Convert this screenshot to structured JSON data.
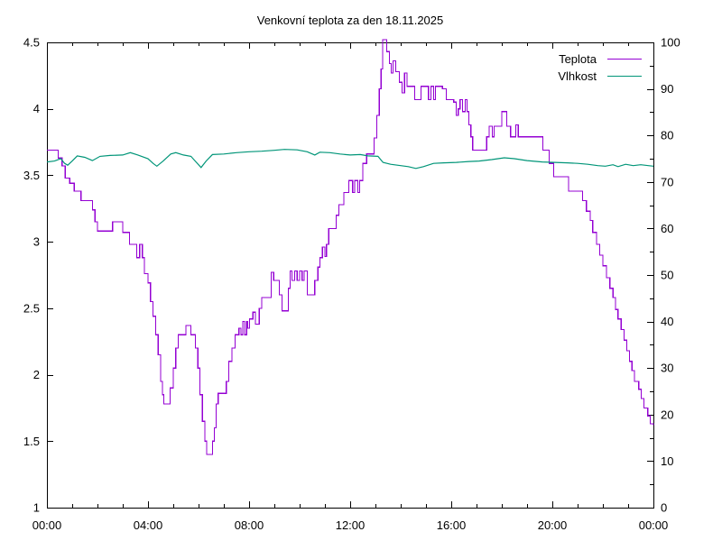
{
  "chart_data": {
    "type": "line",
    "title": "Venkovní teplota za den 18.11.2025",
    "grid": false,
    "legend": {
      "position": "top-right-inside"
    },
    "x_axis": {
      "unit": "time",
      "range_hours": [
        0,
        24
      ],
      "minor_tick_every_hours": 1,
      "major_ticks": [
        [
          0,
          "00:00"
        ],
        [
          4,
          "04:00"
        ],
        [
          8,
          "08:00"
        ],
        [
          12,
          "12:00"
        ],
        [
          16,
          "16:00"
        ],
        [
          20,
          "20:00"
        ],
        [
          24,
          "00:00"
        ]
      ]
    },
    "y_axis_left": {
      "name": "Teplota",
      "range": [
        1,
        4.5
      ],
      "ticks": [
        [
          1,
          "1"
        ],
        [
          1.5,
          "1.5"
        ],
        [
          2,
          "2"
        ],
        [
          2.5,
          "2.5"
        ],
        [
          3,
          "3"
        ],
        [
          3.5,
          "3.5"
        ],
        [
          4,
          "4"
        ],
        [
          4.5,
          "4.5"
        ]
      ]
    },
    "y_axis_right": {
      "name": "Vlhkost",
      "range": [
        0,
        100
      ],
      "minor_tick_every": 5,
      "ticks": [
        [
          0,
          "0"
        ],
        [
          10,
          "10"
        ],
        [
          20,
          "20"
        ],
        [
          30,
          "30"
        ],
        [
          40,
          "40"
        ],
        [
          50,
          "50"
        ],
        [
          60,
          "60"
        ],
        [
          70,
          "70"
        ],
        [
          80,
          "80"
        ],
        [
          90,
          "90"
        ],
        [
          100,
          "100"
        ]
      ]
    },
    "series": [
      {
        "name": "Teplota",
        "axis": "left",
        "color": "#9400d3",
        "style": "steps",
        "points": [
          [
            0,
            3.69
          ],
          [
            0.45,
            3.63
          ],
          [
            0.6,
            3.57
          ],
          [
            0.72,
            3.48
          ],
          [
            0.9,
            3.44
          ],
          [
            1.08,
            3.38
          ],
          [
            1.35,
            3.31
          ],
          [
            1.8,
            3.24
          ],
          [
            1.9,
            3.15
          ],
          [
            2.0,
            3.08
          ],
          [
            2.6,
            3.15
          ],
          [
            3.0,
            3.07
          ],
          [
            3.27,
            2.98
          ],
          [
            3.55,
            2.88
          ],
          [
            3.67,
            2.98
          ],
          [
            3.78,
            2.88
          ],
          [
            3.86,
            2.76
          ],
          [
            4.0,
            2.69
          ],
          [
            4.1,
            2.55
          ],
          [
            4.2,
            2.44
          ],
          [
            4.3,
            2.3
          ],
          [
            4.4,
            2.15
          ],
          [
            4.5,
            1.95
          ],
          [
            4.57,
            1.85
          ],
          [
            4.62,
            1.78
          ],
          [
            4.88,
            1.9
          ],
          [
            5.0,
            2.05
          ],
          [
            5.1,
            2.2
          ],
          [
            5.2,
            2.3
          ],
          [
            5.5,
            2.37
          ],
          [
            5.7,
            2.3
          ],
          [
            5.88,
            2.2
          ],
          [
            5.97,
            2.05
          ],
          [
            6.05,
            1.85
          ],
          [
            6.15,
            1.65
          ],
          [
            6.25,
            1.5
          ],
          [
            6.32,
            1.4
          ],
          [
            6.55,
            1.5
          ],
          [
            6.63,
            1.6
          ],
          [
            6.7,
            1.78
          ],
          [
            6.78,
            1.86
          ],
          [
            7.1,
            1.95
          ],
          [
            7.2,
            2.1
          ],
          [
            7.32,
            2.2
          ],
          [
            7.45,
            2.3
          ],
          [
            7.6,
            2.35
          ],
          [
            7.68,
            2.3
          ],
          [
            7.75,
            2.4
          ],
          [
            7.82,
            2.3
          ],
          [
            7.9,
            2.4
          ],
          [
            7.95,
            2.35
          ],
          [
            8.02,
            2.42
          ],
          [
            8.15,
            2.47
          ],
          [
            8.25,
            2.38
          ],
          [
            8.4,
            2.5
          ],
          [
            8.5,
            2.58
          ],
          [
            8.88,
            2.77
          ],
          [
            8.97,
            2.71
          ],
          [
            9.2,
            2.6
          ],
          [
            9.3,
            2.48
          ],
          [
            9.55,
            2.65
          ],
          [
            9.62,
            2.78
          ],
          [
            9.7,
            2.71
          ],
          [
            9.8,
            2.78
          ],
          [
            9.9,
            2.71
          ],
          [
            10.0,
            2.78
          ],
          [
            10.1,
            2.71
          ],
          [
            10.18,
            2.78
          ],
          [
            10.3,
            2.6
          ],
          [
            10.6,
            2.71
          ],
          [
            10.72,
            2.81
          ],
          [
            10.8,
            2.88
          ],
          [
            10.9,
            2.96
          ],
          [
            11.0,
            2.89
          ],
          [
            11.06,
            2.98
          ],
          [
            11.15,
            3.1
          ],
          [
            11.45,
            3.2
          ],
          [
            11.55,
            3.28
          ],
          [
            11.75,
            3.37
          ],
          [
            11.95,
            3.46
          ],
          [
            12.1,
            3.37
          ],
          [
            12.18,
            3.46
          ],
          [
            12.3,
            3.37
          ],
          [
            12.38,
            3.46
          ],
          [
            12.5,
            3.59
          ],
          [
            12.65,
            3.66
          ],
          [
            12.95,
            3.78
          ],
          [
            13.05,
            3.95
          ],
          [
            13.15,
            4.15
          ],
          [
            13.22,
            4.3
          ],
          [
            13.29,
            4.52
          ],
          [
            13.45,
            4.43
          ],
          [
            13.55,
            4.34
          ],
          [
            13.62,
            4.27
          ],
          [
            13.7,
            4.36
          ],
          [
            13.8,
            4.28
          ],
          [
            13.95,
            4.2
          ],
          [
            14.05,
            4.12
          ],
          [
            14.15,
            4.27
          ],
          [
            14.25,
            4.17
          ],
          [
            14.55,
            4.07
          ],
          [
            14.8,
            4.17
          ],
          [
            15.1,
            4.07
          ],
          [
            15.2,
            4.17
          ],
          [
            15.3,
            4.07
          ],
          [
            15.38,
            4.17
          ],
          [
            15.65,
            4.15
          ],
          [
            15.8,
            4.07
          ],
          [
            16.1,
            4.05
          ],
          [
            16.2,
            3.95
          ],
          [
            16.28,
            4.0
          ],
          [
            16.35,
            4.07
          ],
          [
            16.45,
            3.98
          ],
          [
            16.55,
            4.07
          ],
          [
            16.62,
            3.98
          ],
          [
            16.7,
            3.88
          ],
          [
            16.78,
            3.79
          ],
          [
            16.85,
            3.69
          ],
          [
            17.4,
            3.79
          ],
          [
            17.5,
            3.87
          ],
          [
            17.62,
            3.79
          ],
          [
            17.7,
            3.87
          ],
          [
            18.0,
            3.98
          ],
          [
            18.2,
            3.87
          ],
          [
            18.35,
            3.79
          ],
          [
            18.55,
            3.88
          ],
          [
            18.65,
            3.79
          ],
          [
            19.62,
            3.69
          ],
          [
            19.88,
            3.59
          ],
          [
            20.05,
            3.49
          ],
          [
            20.64,
            3.38
          ],
          [
            21.2,
            3.31
          ],
          [
            21.35,
            3.23
          ],
          [
            21.5,
            3.16
          ],
          [
            21.6,
            3.07
          ],
          [
            21.75,
            2.98
          ],
          [
            21.88,
            2.9
          ],
          [
            22.0,
            2.82
          ],
          [
            22.14,
            2.73
          ],
          [
            22.28,
            2.65
          ],
          [
            22.4,
            2.58
          ],
          [
            22.5,
            2.49
          ],
          [
            22.6,
            2.42
          ],
          [
            22.72,
            2.34
          ],
          [
            22.84,
            2.26
          ],
          [
            22.95,
            2.18
          ],
          [
            23.05,
            2.1
          ],
          [
            23.15,
            2.03
          ],
          [
            23.25,
            1.95
          ],
          [
            23.42,
            1.89
          ],
          [
            23.52,
            1.82
          ],
          [
            23.62,
            1.75
          ],
          [
            23.78,
            1.69
          ],
          [
            23.88,
            1.63
          ],
          [
            24.0,
            1.62
          ]
        ]
      },
      {
        "name": "Vlhkost",
        "axis": "right",
        "color": "#009578",
        "style": "line",
        "points": [
          [
            0,
            74.3
          ],
          [
            0.3,
            74.5
          ],
          [
            0.55,
            75.0
          ],
          [
            0.7,
            74.0
          ],
          [
            0.82,
            73.6
          ],
          [
            1.0,
            74.5
          ],
          [
            1.2,
            75.6
          ],
          [
            1.5,
            75.3
          ],
          [
            1.8,
            74.6
          ],
          [
            2.1,
            75.5
          ],
          [
            2.5,
            75.7
          ],
          [
            3.0,
            75.8
          ],
          [
            3.3,
            76.3
          ],
          [
            3.6,
            75.8
          ],
          [
            4.0,
            75.0
          ],
          [
            4.2,
            74.0
          ],
          [
            4.35,
            73.4
          ],
          [
            4.6,
            74.5
          ],
          [
            4.9,
            76.0
          ],
          [
            5.1,
            76.3
          ],
          [
            5.4,
            75.8
          ],
          [
            5.7,
            75.5
          ],
          [
            5.9,
            74.3
          ],
          [
            6.1,
            73.1
          ],
          [
            6.3,
            74.5
          ],
          [
            6.55,
            75.9
          ],
          [
            7.0,
            76.0
          ],
          [
            7.5,
            76.3
          ],
          [
            8.0,
            76.5
          ],
          [
            8.5,
            76.6
          ],
          [
            9.0,
            76.8
          ],
          [
            9.4,
            77.0
          ],
          [
            9.9,
            76.9
          ],
          [
            10.3,
            76.5
          ],
          [
            10.6,
            75.8
          ],
          [
            10.8,
            76.4
          ],
          [
            11.2,
            76.3
          ],
          [
            11.6,
            76.0
          ],
          [
            12.0,
            75.8
          ],
          [
            12.4,
            75.9
          ],
          [
            12.7,
            75.6
          ],
          [
            13.1,
            75.5
          ],
          [
            13.3,
            74.2
          ],
          [
            13.6,
            73.8
          ],
          [
            14.0,
            73.5
          ],
          [
            14.3,
            73.3
          ],
          [
            14.6,
            72.9
          ],
          [
            14.9,
            73.3
          ],
          [
            15.3,
            74.0
          ],
          [
            15.7,
            74.1
          ],
          [
            16.2,
            74.2
          ],
          [
            16.7,
            74.4
          ],
          [
            17.1,
            74.5
          ],
          [
            17.6,
            74.8
          ],
          [
            18.1,
            75.2
          ],
          [
            18.5,
            75.0
          ],
          [
            19.0,
            74.6
          ],
          [
            19.6,
            74.3
          ],
          [
            20.1,
            74.2
          ],
          [
            20.6,
            74.1
          ],
          [
            21.0,
            74.0
          ],
          [
            21.4,
            73.8
          ],
          [
            21.8,
            73.5
          ],
          [
            22.1,
            73.4
          ],
          [
            22.4,
            73.7
          ],
          [
            22.6,
            73.3
          ],
          [
            22.9,
            73.8
          ],
          [
            23.2,
            73.5
          ],
          [
            23.5,
            73.7
          ],
          [
            23.8,
            73.5
          ],
          [
            24.0,
            73.4
          ]
        ]
      }
    ],
    "colors": {
      "axis": "#000000",
      "background": "#ffffff"
    }
  }
}
